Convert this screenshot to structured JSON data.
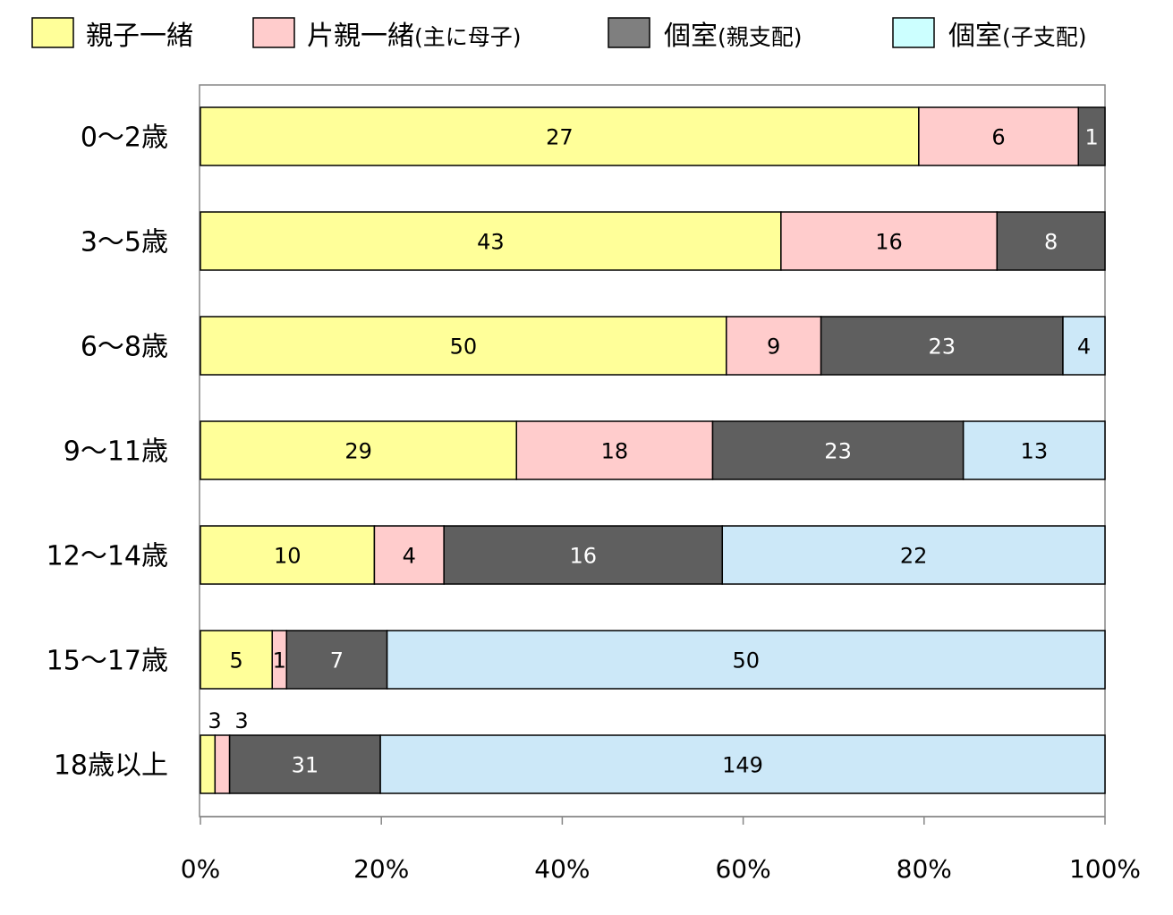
{
  "chart_data": {
    "type": "bar",
    "orientation": "horizontal",
    "stacked": "percent",
    "title": "",
    "xlabel": "",
    "ylabel": "",
    "xlim": [
      0,
      100
    ],
    "x_ticks": [
      "0%",
      "20%",
      "40%",
      "60%",
      "80%",
      "100%"
    ],
    "legend_position": "top",
    "grid": false,
    "categories": [
      "0〜2歳",
      "3〜5歳",
      "6〜8歳",
      "9〜11歳",
      "12〜14歳",
      "15〜17歳",
      "18歳以上"
    ],
    "series": [
      {
        "name": "親子一緒",
        "name_main": "親子一緒",
        "name_sub": "",
        "color": "#ffff99",
        "label_color": "#000000",
        "values": [
          27,
          43,
          50,
          29,
          10,
          5,
          3
        ]
      },
      {
        "name": "片親一緒（主に母子）",
        "name_main": "片親一緒",
        "name_sub": "(主に母子)",
        "color": "#ffcccc",
        "label_color": "#000000",
        "values": [
          6,
          16,
          9,
          18,
          4,
          1,
          3
        ]
      },
      {
        "name": "個室（親支配）",
        "name_main": "個室",
        "name_sub": "(親支配)",
        "color": "#5f5f5f",
        "label_color": "#ffffff",
        "values": [
          1,
          8,
          23,
          23,
          16,
          7,
          31
        ]
      },
      {
        "name": "個室（子支配）",
        "name_main": "個室",
        "name_sub": "(子支配)",
        "color": "#cce8f8",
        "label_color": "#000000",
        "values": [
          0,
          0,
          4,
          13,
          22,
          50,
          149
        ]
      }
    ],
    "legend_swatch_colors": [
      "#ffff99",
      "#ffcccc",
      "#7f7f7f",
      "#ccffff"
    ]
  }
}
